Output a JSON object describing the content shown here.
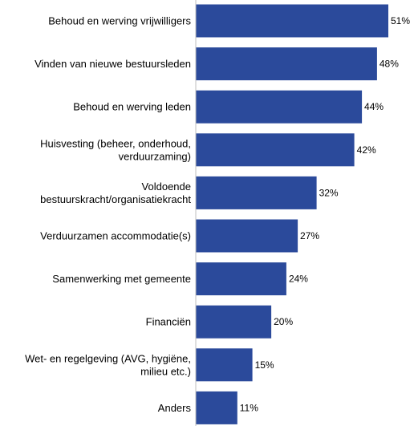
{
  "chart_data": {
    "type": "bar",
    "orientation": "horizontal",
    "categories": [
      [
        "Behoud en werving vrijwilligers"
      ],
      [
        "Vinden van nieuwe bestuursleden"
      ],
      [
        "Behoud en werving leden"
      ],
      [
        "Huisvesting (beheer, onderhoud,",
        "verduurzaming)"
      ],
      [
        "Voldoende",
        "bestuurskracht/organisatiekracht"
      ],
      [
        "Verduurzamen accommodatie(s)"
      ],
      [
        "Samenwerking met gemeente"
      ],
      [
        "Financiën"
      ],
      [
        "Wet- en regelgeving (AVG, hygiëne,",
        "milieu etc.)"
      ],
      [
        "Anders"
      ]
    ],
    "values": [
      51,
      48,
      44,
      42,
      32,
      27,
      24,
      20,
      15,
      11
    ],
    "value_labels": [
      "51%",
      "48%",
      "44%",
      "42%",
      "32%",
      "27%",
      "24%",
      "20%",
      "15%",
      "11%"
    ],
    "title": "",
    "xlabel": "",
    "ylabel": "",
    "xlim": [
      0,
      51
    ],
    "grid": false,
    "legend": "none",
    "colors": {
      "bar": "#2b4a9b",
      "axis": "#bfbfbf",
      "text": "#000000"
    }
  }
}
